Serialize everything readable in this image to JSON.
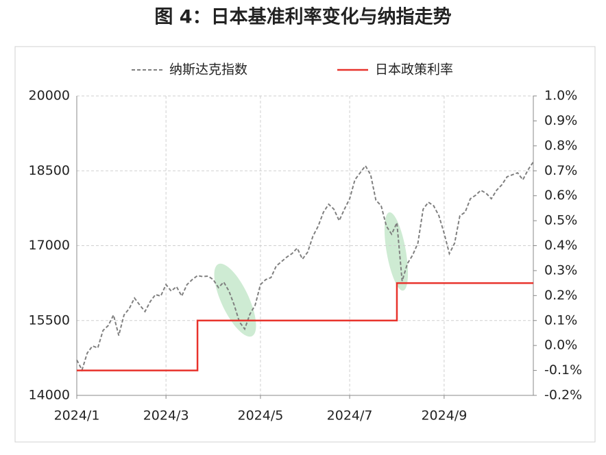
{
  "chart_data": {
    "type": "line",
    "title": "图 4：日本基准利率变化与纳指走势",
    "categories": [
      "2024/1",
      null,
      null,
      null,
      null,
      null,
      null,
      null,
      null,
      null,
      null,
      null,
      null,
      null,
      null,
      null,
      null,
      "2024/3",
      null,
      null,
      null,
      null,
      null,
      null,
      null,
      null,
      null,
      null,
      null,
      null,
      null,
      null,
      null,
      null,
      null,
      "2024/5",
      null,
      null,
      null,
      null,
      null,
      null,
      null,
      null,
      null,
      null,
      null,
      null,
      null,
      null,
      null,
      null,
      "2024/7",
      null,
      null,
      null,
      null,
      null,
      null,
      null,
      null,
      null,
      null,
      null,
      null,
      null,
      null,
      null,
      null,
      null,
      "2024/9",
      null,
      null,
      null,
      null,
      null,
      null,
      null,
      null,
      null,
      null,
      null,
      null,
      null,
      null,
      null,
      null,
      null
    ],
    "series": [
      {
        "name": "纳斯达克指数",
        "color": "#7f7f7f",
        "line_style": "dashed",
        "values": [
          14710,
          14510,
          14850,
          14990,
          14950,
          15300,
          15400,
          15610,
          15200,
          15610,
          15740,
          15950,
          15810,
          15680,
          15880,
          16020,
          15990,
          16220,
          16090,
          16180,
          15990,
          16220,
          16320,
          16400,
          16380,
          16390,
          16320,
          16160,
          16270,
          16090,
          15810,
          15470,
          15330,
          15630,
          15810,
          16220,
          16320,
          16360,
          16590,
          16680,
          16770,
          16840,
          16950,
          16730,
          16870,
          17190,
          17390,
          17670,
          17830,
          17730,
          17500,
          17730,
          17940,
          18320,
          18460,
          18600,
          18420,
          17910,
          17800,
          17390,
          17230,
          17460,
          16290,
          16640,
          16810,
          17050,
          17730,
          17870,
          17800,
          17600,
          17250,
          16840,
          17050,
          17600,
          17670,
          17940,
          18010,
          18110,
          18050,
          17940,
          18110,
          18220,
          18380,
          18420,
          18460,
          18320,
          18520,
          18680
        ]
      },
      {
        "name": "日本政策利率",
        "color": "#e8322b",
        "line_style": "solid",
        "step": "post",
        "axis": "y2",
        "values": [
          -0.1,
          -0.1,
          -0.1,
          -0.1,
          -0.1,
          -0.1,
          -0.1,
          -0.1,
          -0.1,
          -0.1,
          -0.1,
          -0.1,
          -0.1,
          -0.1,
          -0.1,
          -0.1,
          -0.1,
          -0.1,
          -0.1,
          -0.1,
          -0.1,
          -0.1,
          -0.1,
          0.1,
          0.1,
          0.1,
          0.1,
          0.1,
          0.1,
          0.1,
          0.1,
          0.1,
          0.1,
          0.1,
          0.1,
          0.1,
          0.1,
          0.1,
          0.1,
          0.1,
          0.1,
          0.1,
          0.1,
          0.1,
          0.1,
          0.1,
          0.1,
          0.1,
          0.1,
          0.1,
          0.1,
          0.1,
          0.1,
          0.1,
          0.1,
          0.1,
          0.1,
          0.1,
          0.1,
          0.1,
          0.1,
          0.25,
          0.25,
          0.25,
          0.25,
          0.25,
          0.25,
          0.25,
          0.25,
          0.25,
          0.25,
          0.25,
          0.25,
          0.25,
          0.25,
          0.25,
          0.25,
          0.25,
          0.25,
          0.25,
          0.25,
          0.25,
          0.25,
          0.25,
          0.25,
          0.25,
          0.25,
          0.25
        ]
      }
    ],
    "ylim": [
      14000,
      20000
    ],
    "yticks": [
      14000,
      15500,
      17000,
      18500,
      20000
    ],
    "y2lim": [
      -0.2,
      1.0
    ],
    "y2ticks": [
      {
        "value": -0.2,
        "label": "-0.2%"
      },
      {
        "value": -0.1,
        "label": "-0.1%"
      },
      {
        "value": 0,
        "label": "0.0%"
      },
      {
        "value": 0.1,
        "label": "0.1%"
      },
      {
        "value": 0.2,
        "label": "0.2%"
      },
      {
        "value": 0.3,
        "label": "0.3%"
      },
      {
        "value": 0.4,
        "label": "0.4%"
      },
      {
        "value": 0.5,
        "label": "0.5%"
      },
      {
        "value": 0.6,
        "label": "0.6%"
      },
      {
        "value": 0.7,
        "label": "0.7%"
      },
      {
        "value": 0.8,
        "label": "0.8%"
      },
      {
        "value": 0.9,
        "label": "0.9%"
      },
      {
        "value": 1,
        "label": "1.0%"
      }
    ],
    "grid": true,
    "legend": "top"
  }
}
